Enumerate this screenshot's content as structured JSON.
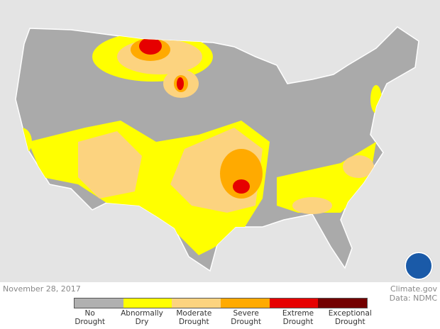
{
  "date": "November 28, 2017",
  "credit": {
    "line1": "Climate.gov",
    "line2": "Data: NDMC"
  },
  "logo": "NOAA",
  "legend": [
    {
      "label1": "No",
      "label2": "Drought",
      "color": "#b0b0b0"
    },
    {
      "label1": "Abnormally",
      "label2": "Dry",
      "color": "#ffff00"
    },
    {
      "label1": "Moderate",
      "label2": "Drought",
      "color": "#fcd37f"
    },
    {
      "label1": "Severe",
      "label2": "Drought",
      "color": "#ffaa00"
    },
    {
      "label1": "Extreme",
      "label2": "Drought",
      "color": "#e60000"
    },
    {
      "label1": "Exceptional",
      "label2": "Drought",
      "color": "#730000"
    }
  ]
}
